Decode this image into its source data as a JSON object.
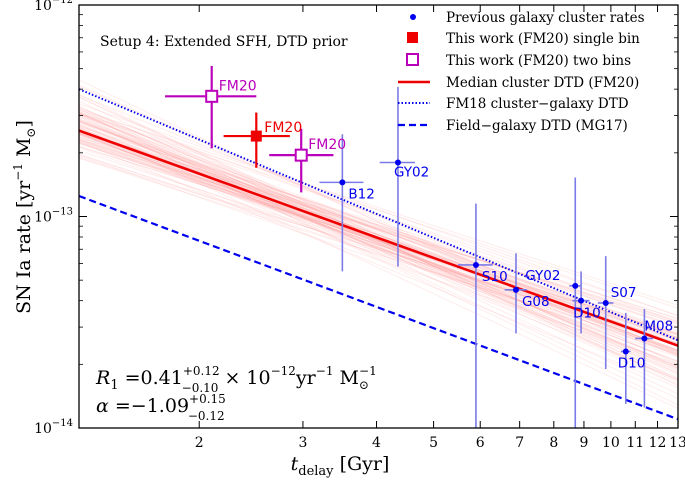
{
  "chart_data": {
    "type": "scatter",
    "x_scale": "log",
    "y_scale": "log",
    "xlim": [
      1.25,
      13
    ],
    "ylim": [
      1e-14,
      1e-12
    ],
    "x_ticks": [
      {
        "value": 2,
        "label": "2"
      },
      {
        "value": 3,
        "label": "3"
      },
      {
        "value": 4,
        "label": "4"
      },
      {
        "value": 5,
        "label": "5"
      },
      {
        "value": 6,
        "label": "6"
      },
      {
        "value": 7,
        "label": "7"
      },
      {
        "value": 8,
        "label": "8"
      },
      {
        "value": 9,
        "label": "9"
      },
      {
        "value": 10,
        "label": "10"
      },
      {
        "value": 11,
        "label": "11"
      },
      {
        "value": 12,
        "label": "12"
      },
      {
        "value": 13,
        "label": "13"
      }
    ],
    "y_ticks": [
      {
        "value": 1e-14,
        "base": "10",
        "exp": "−14"
      },
      {
        "value": 1e-13,
        "base": "10",
        "exp": "−13"
      },
      {
        "value": 1e-12,
        "base": "10",
        "exp": "−12"
      }
    ],
    "xlabel": {
      "main": "t",
      "sub": "delay",
      "unit": " [Gyr]"
    },
    "ylabel": {
      "main": "SN Ia rate [yr",
      "sup1": "−1",
      "mid": " M",
      "sub": "⊙",
      "end": "]"
    },
    "setup_label": "Setup 4: Extended SFH, DTD prior",
    "annotation": {
      "line1": {
        "lhs": "R",
        "lhs_sub": "1",
        "eq": " =0.41",
        "sup": "+0.12",
        "sub": "−0.10",
        "rest": " × 10",
        "exp": "−12",
        "unit": "yr",
        "unit_exp": "−1",
        "msun": " M",
        "msun_sub": "⊙",
        "msun_exp": "−1"
      },
      "line2": {
        "lhs": "α",
        "eq": " =−1.09",
        "sup": "+0.15",
        "sub": "−0.12"
      }
    },
    "colors": {
      "cluster_rates": "#0000ee",
      "cluster_errors": "#7b7be8",
      "single_bin": "#ee0000",
      "two_bins": "#bb00bb",
      "median": "#ee0000",
      "posterior": "#ff8c8c",
      "fm18": "#0000ee",
      "field": "#0000ee"
    },
    "legend_position": "top-right",
    "legend": [
      {
        "label": "Previous galaxy cluster rates",
        "kind": "dot"
      },
      {
        "label": "This work (FM20) single bin",
        "kind": "square"
      },
      {
        "label": "This work (FM20) two bins",
        "kind": "open-square"
      },
      {
        "label": "Median cluster DTD (FM20)",
        "kind": "solid"
      },
      {
        "label": "FM18 cluster−galaxy DTD",
        "kind": "dotted"
      },
      {
        "label": "Field−galaxy DTD (MG17)",
        "kind": "dashed"
      }
    ],
    "lines": {
      "median": {
        "points": [
          [
            1.25,
            2.55e-13
          ],
          [
            13,
            2.45e-14
          ]
        ]
      },
      "fm18": {
        "points": [
          [
            1.25,
            4e-13
          ],
          [
            13,
            2.6e-14
          ]
        ]
      },
      "field": {
        "points": [
          [
            1.25,
            1.25e-13
          ],
          [
            13,
            1.1e-14
          ]
        ]
      },
      "posterior_band": {
        "count": 90,
        "pivot": 4.0,
        "pivot_rate": 8e-14,
        "alpha_min": -1.35,
        "alpha_max": -0.85
      }
    },
    "cluster_points": [
      {
        "label": "B12",
        "x": 3.5,
        "y": 1.45e-13,
        "xerr": [
          0.3,
          0.3
        ],
        "yerr": [
          9e-14,
          1e-13
        ]
      },
      {
        "label": "GY02",
        "x": 4.35,
        "y": 1.8e-13,
        "xerr": [
          0.3,
          0.3
        ],
        "yerr": [
          1.22e-13,
          2.3e-13
        ]
      },
      {
        "label": "S10",
        "x": 5.9,
        "y": 5.9e-14,
        "xerr": [
          0.4,
          0.4
        ],
        "yerr": [
          4.9e-14,
          5.6e-14
        ]
      },
      {
        "label": "G08",
        "x": 6.9,
        "y": 4.5e-14,
        "xerr": [
          0.3,
          0.3
        ],
        "yerr": [
          1.7e-14,
          2.2e-14
        ]
      },
      {
        "label": "GY02",
        "x": 8.7,
        "y": 4.7e-14,
        "xerr": [
          0.2,
          0.2
        ],
        "yerr": [
          3.7e-14,
          1.06e-13
        ]
      },
      {
        "label": "D10",
        "x": 8.9,
        "y": 4e-14,
        "xerr": [
          0.3,
          0.3
        ],
        "yerr": [
          1.2e-14,
          1.5e-14
        ]
      },
      {
        "label": "S07",
        "x": 9.8,
        "y": 3.9e-14,
        "xerr": [
          0.3,
          0.3
        ],
        "yerr": [
          2e-14,
          2.6e-14
        ]
      },
      {
        "label": "D10",
        "x": 10.6,
        "y": 2.3e-14,
        "xerr": [
          0.2,
          0.2
        ],
        "yerr": [
          1e-14,
          1.2e-14
        ]
      },
      {
        "label": "M08",
        "x": 11.4,
        "y": 2.65e-14,
        "xerr": [
          0.4,
          0.4
        ],
        "yerr": [
          1.4e-14,
          1e-14
        ]
      }
    ],
    "fm20_single": {
      "label": "FM20",
      "x": 2.5,
      "y": 2.4e-13,
      "xerr": [
        0.3,
        0.35
      ],
      "yerr": [
        7e-14,
        7e-14
      ]
    },
    "fm20_two": [
      {
        "label": "FM20",
        "x": 2.1,
        "y": 3.7e-13,
        "xerr": [
          0.35,
          0.4
        ],
        "yerr": [
          1.6e-13,
          1.45e-13
        ]
      },
      {
        "label": "FM20",
        "x": 2.98,
        "y": 1.95e-13,
        "xerr": [
          0.35,
          0.4
        ],
        "yerr": [
          6.5e-14,
          6.5e-14
        ]
      }
    ]
  }
}
